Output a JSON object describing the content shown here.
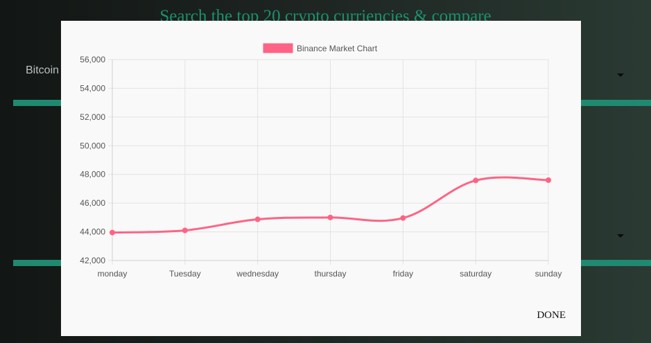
{
  "background": {
    "title": "Search the top 20 crypto curriencies & compare",
    "select_1_value": "Bitcoin"
  },
  "modal": {
    "done_label": "DONE"
  },
  "colors": {
    "line": "#ff6384",
    "grid": "#e3e3e3",
    "accent_bar": "#1f8a70"
  },
  "chart_data": {
    "type": "line",
    "categories": [
      "monday",
      "Tuesday",
      "wednesday",
      "thursday",
      "friday",
      "saturday",
      "sunday"
    ],
    "series": [
      {
        "name": "Binance Market Chart",
        "values": [
          43950,
          44100,
          44870,
          45000,
          44960,
          47580,
          47600
        ]
      }
    ],
    "ylim": [
      42000,
      56000
    ],
    "yticks": [
      42000,
      44000,
      46000,
      48000,
      50000,
      52000,
      54000,
      56000
    ],
    "ytick_labels": [
      "42,000",
      "44,000",
      "46,000",
      "48,000",
      "50,000",
      "52,000",
      "54,000",
      "56,000"
    ],
    "grid": true,
    "legend_position": "top-center",
    "title": "",
    "xlabel": "",
    "ylabel": ""
  }
}
